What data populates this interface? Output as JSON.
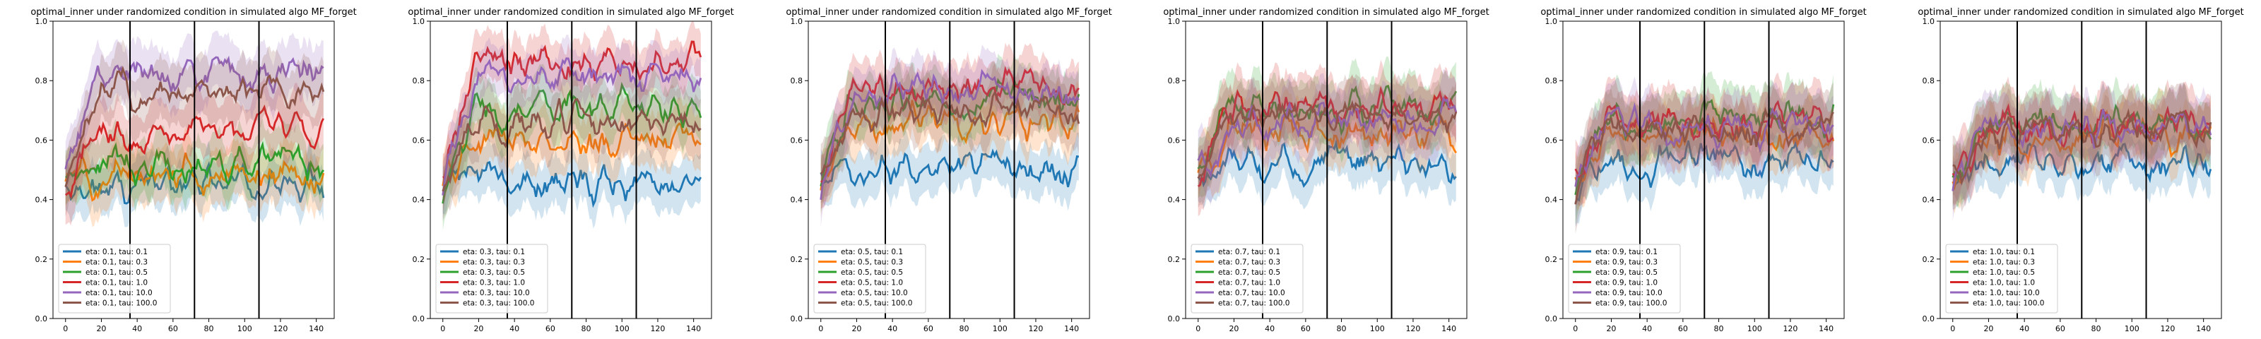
{
  "figure": {
    "type": "line-grid",
    "panel_count": 6
  },
  "series_colors": [
    "#1f77b4",
    "#ff7f0e",
    "#2ca02c",
    "#d62728",
    "#9467bd",
    "#8c564b"
  ],
  "chart_data": [
    {
      "type": "line",
      "title": "optimal_inner under randomized condition in simulated algo MF_forget",
      "xlabel": "",
      "ylabel": "",
      "xlim": [
        -7,
        150
      ],
      "ylim": [
        0.0,
        1.0
      ],
      "xticks": [
        0,
        20,
        40,
        60,
        80,
        100,
        120,
        140
      ],
      "yticks": [
        0.0,
        0.2,
        0.4,
        0.6,
        0.8,
        1.0
      ],
      "vlines": [
        36,
        72,
        108
      ],
      "grid": false,
      "legend_position": "lower-left",
      "n_points": 145,
      "series": [
        {
          "name": "eta: 0.1, tau: 0.1",
          "mean": 0.45,
          "band": 0.08
        },
        {
          "name": "eta: 0.1, tau: 0.3",
          "mean": 0.48,
          "band": 0.09
        },
        {
          "name": "eta: 0.1, tau: 0.5",
          "mean": 0.51,
          "band": 0.09
        },
        {
          "name": "eta: 0.1, tau: 1.0",
          "mean": 0.63,
          "band": 0.1
        },
        {
          "name": "eta: 0.1, tau: 10.0",
          "mean": 0.82,
          "band": 0.09
        },
        {
          "name": "eta: 0.1, tau: 100.0",
          "mean": 0.76,
          "band": 0.1
        }
      ]
    },
    {
      "type": "line",
      "title": "optimal_inner under randomized condition in simulated algo MF_forget",
      "xlabel": "",
      "ylabel": "",
      "xlim": [
        -7,
        150
      ],
      "ylim": [
        0.0,
        1.0
      ],
      "xticks": [
        0,
        20,
        40,
        60,
        80,
        100,
        120,
        140
      ],
      "yticks": [
        0.0,
        0.2,
        0.4,
        0.6,
        0.8,
        1.0
      ],
      "vlines": [
        36,
        72,
        108
      ],
      "grid": false,
      "legend_position": "lower-left",
      "n_points": 145,
      "series": [
        {
          "name": "eta: 0.3, tau: 0.1",
          "mean": 0.47,
          "band": 0.08
        },
        {
          "name": "eta: 0.3, tau: 0.3",
          "mean": 0.6,
          "band": 0.09
        },
        {
          "name": "eta: 0.3, tau: 0.5",
          "mean": 0.71,
          "band": 0.09
        },
        {
          "name": "eta: 0.3, tau: 1.0",
          "mean": 0.86,
          "band": 0.08
        },
        {
          "name": "eta: 0.3, tau: 10.0",
          "mean": 0.81,
          "band": 0.08
        },
        {
          "name": "eta: 0.3, tau: 100.0",
          "mean": 0.66,
          "band": 0.1
        }
      ]
    },
    {
      "type": "line",
      "title": "optimal_inner under randomized condition in simulated algo MF_forget",
      "xlabel": "",
      "ylabel": "",
      "xlim": [
        -7,
        150
      ],
      "ylim": [
        0.0,
        1.0
      ],
      "xticks": [
        0,
        20,
        40,
        60,
        80,
        100,
        120,
        140
      ],
      "yticks": [
        0.0,
        0.2,
        0.4,
        0.6,
        0.8,
        1.0
      ],
      "vlines": [
        36,
        72,
        108
      ],
      "grid": false,
      "legend_position": "lower-left",
      "n_points": 145,
      "series": [
        {
          "name": "eta: 0.5, tau: 0.1",
          "mean": 0.49,
          "band": 0.08
        },
        {
          "name": "eta: 0.5, tau: 0.3",
          "mean": 0.66,
          "band": 0.09
        },
        {
          "name": "eta: 0.5, tau: 0.5",
          "mean": 0.74,
          "band": 0.09
        },
        {
          "name": "eta: 0.5, tau: 1.0",
          "mean": 0.78,
          "band": 0.09
        },
        {
          "name": "eta: 0.5, tau: 10.0",
          "mean": 0.76,
          "band": 0.09
        },
        {
          "name": "eta: 0.5, tau: 100.0",
          "mean": 0.7,
          "band": 0.1
        }
      ]
    },
    {
      "type": "line",
      "title": "optimal_inner under randomized condition in simulated algo MF_forget",
      "xlabel": "",
      "ylabel": "",
      "xlim": [
        -7,
        150
      ],
      "ylim": [
        0.0,
        1.0
      ],
      "xticks": [
        0,
        20,
        40,
        60,
        80,
        100,
        120,
        140
      ],
      "yticks": [
        0.0,
        0.2,
        0.4,
        0.6,
        0.8,
        1.0
      ],
      "vlines": [
        36,
        72,
        108
      ],
      "grid": false,
      "legend_position": "lower-left",
      "n_points": 145,
      "series": [
        {
          "name": "eta: 0.7, tau: 0.1",
          "mean": 0.52,
          "band": 0.08
        },
        {
          "name": "eta: 0.7, tau: 0.3",
          "mean": 0.62,
          "band": 0.09
        },
        {
          "name": "eta: 0.7, tau: 0.5",
          "mean": 0.7,
          "band": 0.1
        },
        {
          "name": "eta: 0.7, tau: 1.0",
          "mean": 0.72,
          "band": 0.1
        },
        {
          "name": "eta: 0.7, tau: 10.0",
          "mean": 0.67,
          "band": 0.1
        },
        {
          "name": "eta: 0.7, tau: 100.0",
          "mean": 0.69,
          "band": 0.1
        }
      ]
    },
    {
      "type": "line",
      "title": "optimal_inner under randomized condition in simulated algo MF_forget",
      "xlabel": "",
      "ylabel": "",
      "xlim": [
        -7,
        150
      ],
      "ylim": [
        0.0,
        1.0
      ],
      "xticks": [
        0,
        20,
        40,
        60,
        80,
        100,
        120,
        140
      ],
      "yticks": [
        0.0,
        0.2,
        0.4,
        0.6,
        0.8,
        1.0
      ],
      "vlines": [
        36,
        72,
        108
      ],
      "grid": false,
      "legend_position": "lower-left",
      "n_points": 145,
      "series": [
        {
          "name": "eta: 0.9, tau: 0.1",
          "mean": 0.52,
          "band": 0.08
        },
        {
          "name": "eta: 0.9, tau: 0.3",
          "mean": 0.61,
          "band": 0.09
        },
        {
          "name": "eta: 0.9, tau: 0.5",
          "mean": 0.68,
          "band": 0.1
        },
        {
          "name": "eta: 0.9, tau: 1.0",
          "mean": 0.66,
          "band": 0.1
        },
        {
          "name": "eta: 0.9, tau: 10.0",
          "mean": 0.65,
          "band": 0.1
        },
        {
          "name": "eta: 0.9, tau: 100.0",
          "mean": 0.64,
          "band": 0.1
        }
      ]
    },
    {
      "type": "line",
      "title": "optimal_inner under randomized condition in simulated algo MF_forget",
      "xlabel": "",
      "ylabel": "",
      "xlim": [
        -7,
        150
      ],
      "ylim": [
        0.0,
        1.0
      ],
      "xticks": [
        0,
        20,
        40,
        60,
        80,
        100,
        120,
        140
      ],
      "yticks": [
        0.0,
        0.2,
        0.4,
        0.6,
        0.8,
        1.0
      ],
      "vlines": [
        36,
        72,
        108
      ],
      "grid": false,
      "legend_position": "lower-left",
      "n_points": 145,
      "series": [
        {
          "name": "eta: 1.0, tau: 0.1",
          "mean": 0.52,
          "band": 0.08
        },
        {
          "name": "eta: 1.0, tau: 0.3",
          "mean": 0.61,
          "band": 0.09
        },
        {
          "name": "eta: 1.0, tau: 0.5",
          "mean": 0.66,
          "band": 0.1
        },
        {
          "name": "eta: 1.0, tau: 1.0",
          "mean": 0.65,
          "band": 0.1
        },
        {
          "name": "eta: 1.0, tau: 10.0",
          "mean": 0.64,
          "band": 0.1
        },
        {
          "name": "eta: 1.0, tau: 100.0",
          "mean": 0.63,
          "band": 0.1
        }
      ]
    }
  ]
}
